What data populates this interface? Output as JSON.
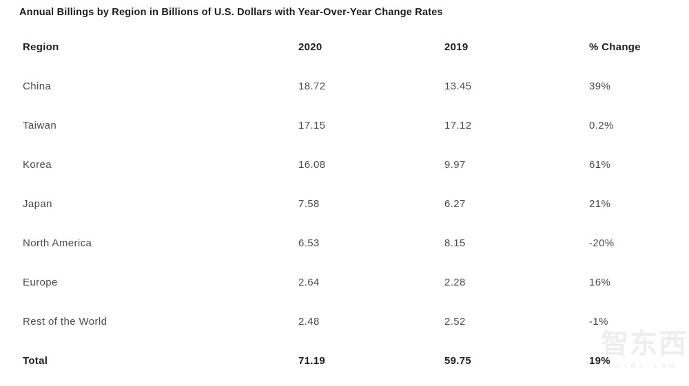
{
  "page": {
    "title": "Annual Billings by Region in Billions of U.S. Dollars with Year-Over-Year Change Rates",
    "background_color": "#ffffff",
    "heading_color": "#1d1d1d",
    "body_text_color": "#4a4a4a"
  },
  "table": {
    "columns": [
      "Region",
      "2020",
      "2019",
      "% Change"
    ],
    "rows": [
      {
        "region": "China",
        "v2020": "18.72",
        "v2019": "13.45",
        "change": "39%"
      },
      {
        "region": "Taiwan",
        "v2020": "17.15",
        "v2019": "17.12",
        "change": "0.2%"
      },
      {
        "region": "Korea",
        "v2020": "16.08",
        "v2019": "9.97",
        "change": "61%"
      },
      {
        "region": "Japan",
        "v2020": "7.58",
        "v2019": "6.27",
        "change": "21%"
      },
      {
        "region": "North America",
        "v2020": "6.53",
        "v2019": "8.15",
        "change": "-20%"
      },
      {
        "region": "Europe",
        "v2020": "2.64",
        "v2019": "2.28",
        "change": "16%"
      },
      {
        "region": "Rest of the World",
        "v2020": "2.48",
        "v2019": "2.52",
        "change": "-1%"
      }
    ],
    "total": {
      "region": "Total",
      "v2020": "71.19",
      "v2019": "59.75",
      "change": "19%"
    }
  },
  "watermark": {
    "logo_text": "智东西",
    "site_text": "zhidx.com"
  },
  "chart_data": {
    "type": "table",
    "title": "Annual Billings by Region in Billions of U.S. Dollars with Year-Over-Year Change Rates",
    "columns": [
      "Region",
      "2020",
      "2019",
      "% Change"
    ],
    "rows": [
      [
        "China",
        18.72,
        13.45,
        "39%"
      ],
      [
        "Taiwan",
        17.15,
        17.12,
        "0.2%"
      ],
      [
        "Korea",
        16.08,
        9.97,
        "61%"
      ],
      [
        "Japan",
        7.58,
        6.27,
        "21%"
      ],
      [
        "North America",
        6.53,
        8.15,
        "-20%"
      ],
      [
        "Europe",
        2.64,
        2.28,
        "16%"
      ],
      [
        "Rest of the World",
        2.48,
        2.52,
        "-1%"
      ],
      [
        "Total",
        71.19,
        59.75,
        "19%"
      ]
    ]
  }
}
